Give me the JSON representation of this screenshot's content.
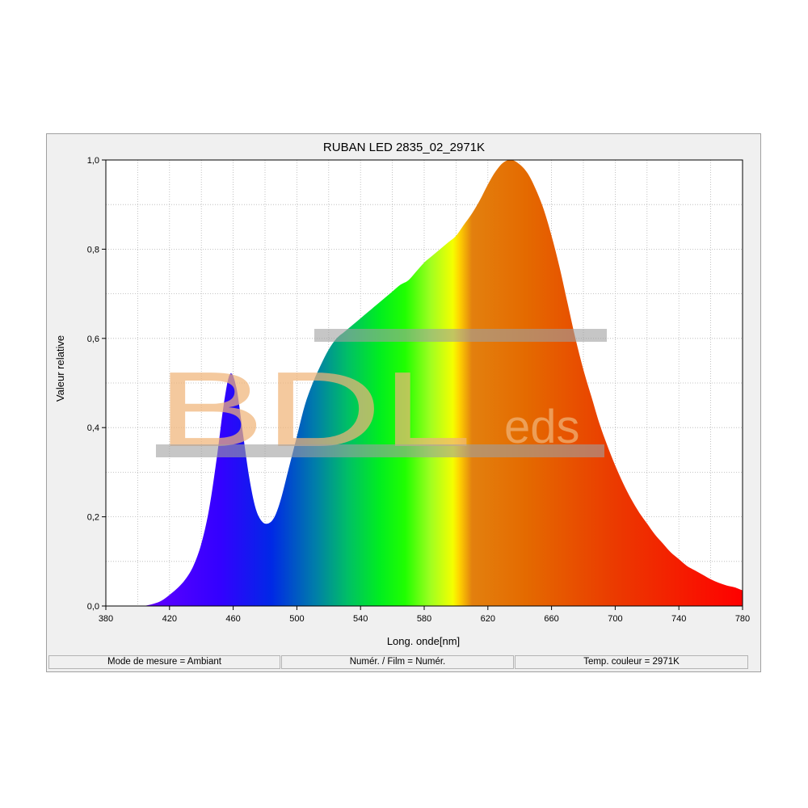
{
  "chart_data": {
    "type": "area",
    "title": "RUBAN LED 2835_02_2971K",
    "xlabel": "Long. onde[nm]",
    "ylabel": "Valeur relative",
    "xlim": [
      380,
      780
    ],
    "ylim": [
      0,
      1.0
    ],
    "x_ticks": [
      380,
      420,
      460,
      500,
      540,
      580,
      620,
      660,
      700,
      740,
      780
    ],
    "x_tick_labels": [
      "380",
      "420",
      "460",
      "500",
      "540",
      "580",
      "620",
      "660",
      "700",
      "740",
      "780"
    ],
    "y_ticks": [
      0,
      0.2,
      0.4,
      0.6,
      0.8,
      1.0
    ],
    "y_tick_labels": [
      "0,0",
      "0,2",
      "0,4",
      "0,6",
      "0,8",
      "1,0"
    ],
    "grid": true,
    "series": [
      {
        "x": [
          404,
          410,
          415,
          420,
          425,
          430,
          435,
          440,
          445,
          450,
          454,
          458,
          462,
          466,
          470,
          474,
          478,
          482,
          486,
          490,
          495,
          500,
          505,
          510,
          515,
          520,
          525,
          530,
          535,
          540,
          545,
          550,
          555,
          560,
          565,
          570,
          575,
          580,
          585,
          590,
          595,
          600,
          605,
          610,
          615,
          620,
          625,
          630,
          635,
          640,
          645,
          650,
          655,
          660,
          665,
          670,
          675,
          680,
          685,
          690,
          695,
          700,
          705,
          710,
          715,
          720,
          725,
          730,
          735,
          740,
          745,
          750,
          755,
          760,
          765,
          770,
          775,
          780
        ],
        "y": [
          0.0,
          0.005,
          0.012,
          0.025,
          0.04,
          0.06,
          0.09,
          0.14,
          0.22,
          0.34,
          0.45,
          0.52,
          0.49,
          0.39,
          0.29,
          0.22,
          0.19,
          0.185,
          0.2,
          0.24,
          0.31,
          0.38,
          0.45,
          0.5,
          0.54,
          0.575,
          0.6,
          0.615,
          0.63,
          0.645,
          0.66,
          0.675,
          0.69,
          0.705,
          0.72,
          0.73,
          0.75,
          0.77,
          0.785,
          0.8,
          0.815,
          0.83,
          0.855,
          0.88,
          0.91,
          0.945,
          0.975,
          0.995,
          1.0,
          0.99,
          0.97,
          0.935,
          0.89,
          0.83,
          0.76,
          0.68,
          0.6,
          0.53,
          0.47,
          0.41,
          0.36,
          0.315,
          0.275,
          0.24,
          0.21,
          0.185,
          0.16,
          0.14,
          0.12,
          0.105,
          0.09,
          0.08,
          0.07,
          0.06,
          0.052,
          0.046,
          0.042,
          0.035
        ]
      }
    ]
  },
  "watermark": {
    "text": "BDL",
    "suffix": "eds"
  },
  "status": {
    "mode": "Mode de mesure = Ambiant",
    "film": "Numér. / Film = Numér.",
    "temp": "Temp. couleur = 2971K"
  }
}
